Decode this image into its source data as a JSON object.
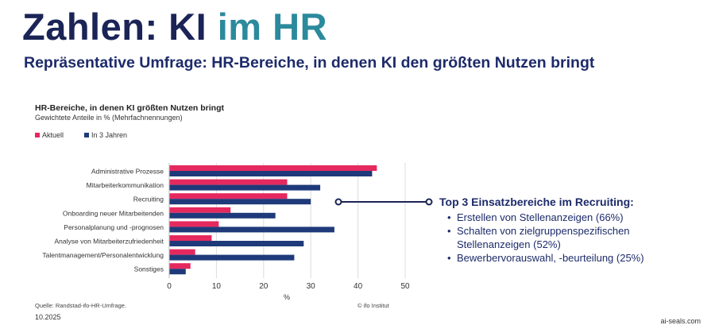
{
  "header": {
    "title_part1": "Zahlen: KI",
    "title_part2": "im HR",
    "subtitle": "Repräsentative Umfrage: HR-Bereiche, in denen KI den größten Nutzen bringt"
  },
  "colors": {
    "aktuell": "#e5295f",
    "drei_jahre": "#1f3a7a",
    "title_dark": "#1b2456",
    "title_accent": "#2b8a9c"
  },
  "callout": {
    "title": "Top 3 Einsatzbereiche im Recruiting:",
    "items": [
      "Erstellen von Stellenanzeigen (66%)",
      "Schalten von zielgruppenspezifischen Stellenanzeigen (52%)",
      "Bewerbervorauswahl, -beurteilung (25%)"
    ]
  },
  "footer": {
    "source": "Quelle: Randstad-ifo-HR-Umfrage.",
    "copyright": "© ifo Institut",
    "date": "10.2025",
    "site": "ai-seals.com"
  },
  "chart_data": {
    "type": "bar",
    "orientation": "horizontal",
    "title": "HR-Bereiche, in denen KI größten Nutzen bringt",
    "subtitle": "Gewichtete Anteile in % (Mehrfachnennungen)",
    "xlabel": "%",
    "xlim": [
      0,
      50
    ],
    "xticks": [
      0,
      10,
      20,
      30,
      40,
      50
    ],
    "grid": true,
    "legend_position": "top-left",
    "categories": [
      "Administrative Prozesse",
      "Mitarbeiterkommunikation",
      "Recruiting",
      "Onboarding neuer Mitarbeitenden",
      "Personalplanung und -prognosen",
      "Analyse von Mitarbeiterzufriedenheit",
      "Talentmanagement/Personalentwicklung",
      "Sonstiges"
    ],
    "series": [
      {
        "name": "Aktuell",
        "values": [
          44,
          25,
          25,
          13,
          10.5,
          9,
          5.5,
          4.5
        ]
      },
      {
        "name": "In 3 Jahren",
        "values": [
          43,
          32,
          30,
          22.5,
          35,
          28.5,
          26.5,
          3.5
        ]
      }
    ]
  }
}
